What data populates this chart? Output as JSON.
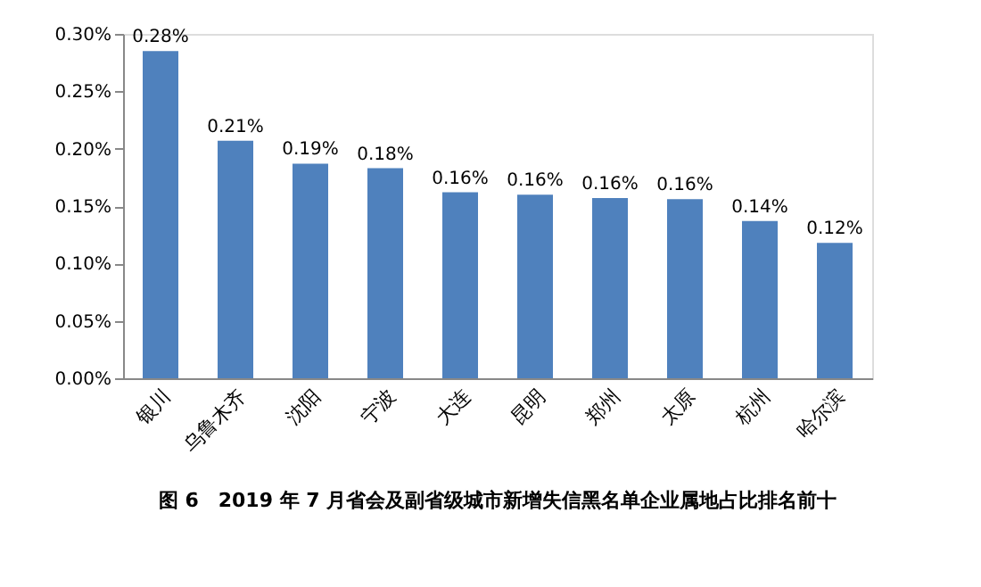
{
  "chart_data": {
    "type": "bar",
    "categories": [
      "银川",
      "乌鲁木齐",
      "沈阳",
      "宁波",
      "大连",
      "昆明",
      "郑州",
      "太原",
      "杭州",
      "哈尔滨"
    ],
    "values": [
      0.285,
      0.207,
      0.187,
      0.183,
      0.162,
      0.16,
      0.157,
      0.156,
      0.137,
      0.118
    ],
    "value_labels": [
      "0.28%",
      "0.21%",
      "0.19%",
      "0.18%",
      "0.16%",
      "0.16%",
      "0.16%",
      "0.16%",
      "0.14%",
      "0.12%"
    ],
    "color": "#4f81bd",
    "ylim": [
      0,
      0.3
    ],
    "yticks": [
      {
        "value": 0,
        "label": "0.00%"
      },
      {
        "value": 0.05,
        "label": "0.05%"
      },
      {
        "value": 0.1,
        "label": "0.10%"
      },
      {
        "value": 0.15,
        "label": "0.15%"
      },
      {
        "value": 0.2,
        "label": "0.20%"
      },
      {
        "value": 0.25,
        "label": "0.25%"
      },
      {
        "value": 0.3,
        "label": "0.30%"
      }
    ],
    "grid": false,
    "annotations": [
      "图 6　2019 年 7 月省会及副省级城市新增失信黑名单企业属地占比排名前十"
    ]
  }
}
